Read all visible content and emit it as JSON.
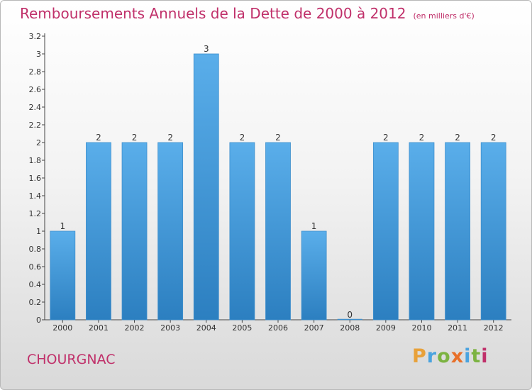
{
  "title": "Remboursements Annuels de la Dette de 2000 à 2012",
  "unit": "(en milliers d'€)",
  "commune": "CHOURGNAC",
  "logo": {
    "letters": [
      "P",
      "r",
      "o",
      "x",
      "i",
      "t",
      "i"
    ],
    "colors": [
      "#e8a13a",
      "#4aa3df",
      "#7cb342",
      "#e8702a",
      "#4aa3df",
      "#7cb342",
      "#c0306a"
    ]
  },
  "colors": {
    "bar_light": "#5aaeea",
    "bar_dark": "#2c7fc0",
    "title": "#c0306a"
  },
  "chart_data": {
    "type": "bar",
    "categories": [
      "2000",
      "2001",
      "2002",
      "2003",
      "2004",
      "2005",
      "2006",
      "2007",
      "2008",
      "2009",
      "2010",
      "2011",
      "2012"
    ],
    "values": [
      1,
      2,
      2,
      2,
      3,
      2,
      2,
      1,
      0,
      2,
      2,
      2,
      2
    ],
    "data_labels": [
      "1",
      "2",
      "2",
      "2",
      "3",
      "2",
      "2",
      "1",
      "0",
      "2",
      "2",
      "2",
      "2"
    ],
    "yticks": [
      "0",
      "0.2",
      "0.4",
      "0.6",
      "0.8",
      "1",
      "1.2",
      "1.4",
      "1.6",
      "1.8",
      "2",
      "2.2",
      "2.4",
      "2.6",
      "2.8",
      "3",
      "3.2"
    ],
    "ylim": [
      0,
      3.2
    ],
    "grid": false
  }
}
